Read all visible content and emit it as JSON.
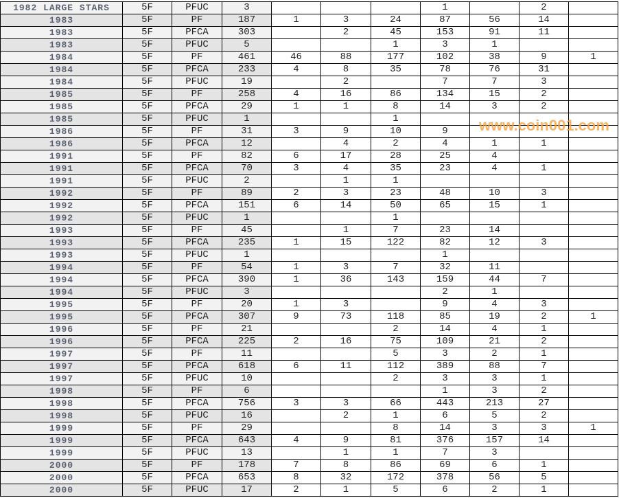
{
  "watermark": "www.coin001.com",
  "rows": [
    [
      "1982 LARGE STARS",
      "5F",
      "PFUC",
      "3",
      "",
      "",
      "",
      "1",
      "",
      "2",
      ""
    ],
    [
      "1983",
      "5F",
      "PF",
      "187",
      "1",
      "3",
      "24",
      "87",
      "56",
      "14",
      ""
    ],
    [
      "1983",
      "5F",
      "PFCA",
      "303",
      "",
      "2",
      "45",
      "153",
      "91",
      "11",
      ""
    ],
    [
      "1983",
      "5F",
      "PFUC",
      "5",
      "",
      "",
      "1",
      "3",
      "1",
      "",
      ""
    ],
    [
      "1984",
      "5F",
      "PF",
      "461",
      "46",
      "88",
      "177",
      "102",
      "38",
      "9",
      "1"
    ],
    [
      "1984",
      "5F",
      "PFCA",
      "233",
      "4",
      "8",
      "35",
      "78",
      "76",
      "31",
      ""
    ],
    [
      "1984",
      "5F",
      "PFUC",
      "19",
      "",
      "2",
      "",
      "7",
      "7",
      "3",
      ""
    ],
    [
      "1985",
      "5F",
      "PF",
      "258",
      "4",
      "16",
      "86",
      "134",
      "15",
      "2",
      ""
    ],
    [
      "1985",
      "5F",
      "PFCA",
      "29",
      "1",
      "1",
      "8",
      "14",
      "3",
      "2",
      ""
    ],
    [
      "1985",
      "5F",
      "PFUC",
      "1",
      "",
      "",
      "1",
      "",
      "",
      "",
      ""
    ],
    [
      "1986",
      "5F",
      "PF",
      "31",
      "3",
      "9",
      "10",
      "9",
      "",
      "",
      ""
    ],
    [
      "1986",
      "5F",
      "PFCA",
      "12",
      "",
      "4",
      "2",
      "4",
      "1",
      "1",
      ""
    ],
    [
      "1991",
      "5F",
      "PF",
      "82",
      "6",
      "17",
      "28",
      "25",
      "4",
      "",
      ""
    ],
    [
      "1991",
      "5F",
      "PFCA",
      "70",
      "3",
      "4",
      "35",
      "23",
      "4",
      "1",
      ""
    ],
    [
      "1991",
      "5F",
      "PFUC",
      "2",
      "",
      "1",
      "1",
      "",
      "",
      "",
      ""
    ],
    [
      "1992",
      "5F",
      "PF",
      "89",
      "2",
      "3",
      "23",
      "48",
      "10",
      "3",
      ""
    ],
    [
      "1992",
      "5F",
      "PFCA",
      "151",
      "6",
      "14",
      "50",
      "65",
      "15",
      "1",
      ""
    ],
    [
      "1992",
      "5F",
      "PFUC",
      "1",
      "",
      "",
      "1",
      "",
      "",
      "",
      ""
    ],
    [
      "1993",
      "5F",
      "PF",
      "45",
      "",
      "1",
      "7",
      "23",
      "14",
      "",
      ""
    ],
    [
      "1993",
      "5F",
      "PFCA",
      "235",
      "1",
      "15",
      "122",
      "82",
      "12",
      "3",
      ""
    ],
    [
      "1993",
      "5F",
      "PFUC",
      "1",
      "",
      "",
      "",
      "1",
      "",
      "",
      ""
    ],
    [
      "1994",
      "5F",
      "PF",
      "54",
      "1",
      "3",
      "7",
      "32",
      "11",
      "",
      ""
    ],
    [
      "1994",
      "5F",
      "PFCA",
      "390",
      "1",
      "36",
      "143",
      "159",
      "44",
      "7",
      ""
    ],
    [
      "1994",
      "5F",
      "PFUC",
      "3",
      "",
      "",
      "",
      "2",
      "1",
      "",
      ""
    ],
    [
      "1995",
      "5F",
      "PF",
      "20",
      "1",
      "3",
      "",
      "9",
      "4",
      "3",
      ""
    ],
    [
      "1995",
      "5F",
      "PFCA",
      "307",
      "9",
      "73",
      "118",
      "85",
      "19",
      "2",
      "1"
    ],
    [
      "1996",
      "5F",
      "PF",
      "21",
      "",
      "",
      "2",
      "14",
      "4",
      "1",
      ""
    ],
    [
      "1996",
      "5F",
      "PFCA",
      "225",
      "2",
      "16",
      "75",
      "109",
      "21",
      "2",
      ""
    ],
    [
      "1997",
      "5F",
      "PF",
      "11",
      "",
      "",
      "5",
      "3",
      "2",
      "1",
      ""
    ],
    [
      "1997",
      "5F",
      "PFCA",
      "618",
      "6",
      "11",
      "112",
      "389",
      "88",
      "7",
      ""
    ],
    [
      "1997",
      "5F",
      "PFUC",
      "10",
      "",
      "",
      "2",
      "3",
      "3",
      "1",
      ""
    ],
    [
      "1998",
      "5F",
      "PF",
      "6",
      "",
      "",
      "",
      "1",
      "3",
      "2",
      ""
    ],
    [
      "1998",
      "5F",
      "PFCA",
      "756",
      "3",
      "3",
      "66",
      "443",
      "213",
      "27",
      ""
    ],
    [
      "1998",
      "5F",
      "PFUC",
      "16",
      "",
      "2",
      "1",
      "6",
      "5",
      "2",
      ""
    ],
    [
      "1999",
      "5F",
      "PF",
      "29",
      "",
      "",
      "8",
      "14",
      "3",
      "3",
      "1"
    ],
    [
      "1999",
      "5F",
      "PFCA",
      "643",
      "4",
      "9",
      "81",
      "376",
      "157",
      "14",
      ""
    ],
    [
      "1999",
      "5F",
      "PFUC",
      "13",
      "",
      "1",
      "1",
      "7",
      "3",
      "",
      ""
    ],
    [
      "2000",
      "5F",
      "PF",
      "178",
      "7",
      "8",
      "86",
      "69",
      "6",
      "1",
      ""
    ],
    [
      "2000",
      "5F",
      "PFCA",
      "653",
      "8",
      "32",
      "172",
      "378",
      "56",
      "5",
      ""
    ],
    [
      "2000",
      "5F",
      "PFUC",
      "17",
      "2",
      "1",
      "5",
      "6",
      "2",
      "1",
      ""
    ]
  ]
}
